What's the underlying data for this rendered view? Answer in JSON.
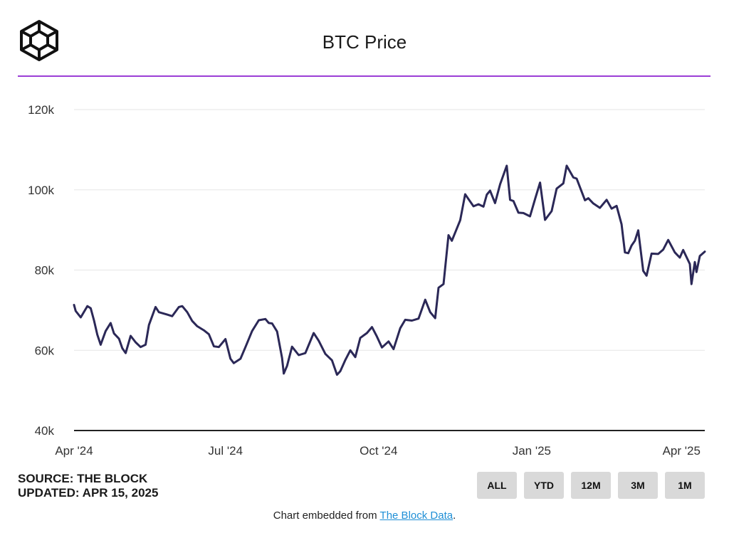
{
  "header": {
    "title": "BTC Price",
    "accent_color": "#9b3fd6",
    "logo_icon": "the-block-cube-logo"
  },
  "chart_data": {
    "type": "line",
    "title": "BTC Price",
    "xlabel": "",
    "ylabel": "",
    "x_range": [
      "2024-04-01",
      "2025-04-15"
    ],
    "ylim": [
      40000,
      120000
    ],
    "y_ticks": [
      40000,
      60000,
      80000,
      100000,
      120000
    ],
    "y_tick_labels": [
      "40k",
      "60k",
      "80k",
      "100k",
      "120k"
    ],
    "x_ticks": [
      "2024-04-01",
      "2024-07-01",
      "2024-10-01",
      "2025-01-01",
      "2025-04-01"
    ],
    "x_tick_labels": [
      "Apr '24",
      "Jul '24",
      "Oct '24",
      "Jan '25",
      "Apr '25"
    ],
    "grid": true,
    "line_color": "#2b2857",
    "series": [
      {
        "x": [
          "2024-04-01",
          "2024-04-02",
          "2024-04-05",
          "2024-04-09",
          "2024-04-11",
          "2024-04-13",
          "2024-04-15",
          "2024-04-17",
          "2024-04-20",
          "2024-04-23",
          "2024-04-25",
          "2024-04-28",
          "2024-04-30",
          "2024-05-02",
          "2024-05-05",
          "2024-05-08",
          "2024-05-11",
          "2024-05-14",
          "2024-05-16",
          "2024-05-20",
          "2024-05-22",
          "2024-05-27",
          "2024-05-30",
          "2024-06-03",
          "2024-06-05",
          "2024-06-08",
          "2024-06-11",
          "2024-06-14",
          "2024-06-18",
          "2024-06-21",
          "2024-06-24",
          "2024-06-27",
          "2024-07-01",
          "2024-07-04",
          "2024-07-06",
          "2024-07-10",
          "2024-07-13",
          "2024-07-17",
          "2024-07-21",
          "2024-07-25",
          "2024-07-27",
          "2024-07-29",
          "2024-08-01",
          "2024-08-04",
          "2024-08-05",
          "2024-08-07",
          "2024-08-10",
          "2024-08-14",
          "2024-08-18",
          "2024-08-23",
          "2024-08-26",
          "2024-08-30",
          "2024-09-03",
          "2024-09-06",
          "2024-09-08",
          "2024-09-11",
          "2024-09-14",
          "2024-09-17",
          "2024-09-20",
          "2024-09-24",
          "2024-09-27",
          "2024-09-30",
          "2024-10-03",
          "2024-10-07",
          "2024-10-10",
          "2024-10-14",
          "2024-10-17",
          "2024-10-21",
          "2024-10-25",
          "2024-10-29",
          "2024-11-01",
          "2024-11-04",
          "2024-11-06",
          "2024-11-09",
          "2024-11-12",
          "2024-11-14",
          "2024-11-19",
          "2024-11-22",
          "2024-11-24",
          "2024-11-27",
          "2024-11-30",
          "2024-12-03",
          "2024-12-05",
          "2024-12-07",
          "2024-12-10",
          "2024-12-13",
          "2024-12-17",
          "2024-12-19",
          "2024-12-21",
          "2024-12-24",
          "2024-12-27",
          "2024-12-31",
          "2025-01-03",
          "2025-01-06",
          "2025-01-09",
          "2025-01-13",
          "2025-01-16",
          "2025-01-20",
          "2025-01-22",
          "2025-01-26",
          "2025-01-28",
          "2025-02-02",
          "2025-02-04",
          "2025-02-07",
          "2025-02-11",
          "2025-02-15",
          "2025-02-18",
          "2025-02-21",
          "2025-02-24",
          "2025-02-26",
          "2025-02-28",
          "2025-03-02",
          "2025-03-04",
          "2025-03-06",
          "2025-03-09",
          "2025-03-11",
          "2025-03-14",
          "2025-03-18",
          "2025-03-21",
          "2025-03-24",
          "2025-03-28",
          "2025-03-31",
          "2025-04-02",
          "2025-04-06",
          "2025-04-07",
          "2025-04-09",
          "2025-04-10",
          "2025-04-12",
          "2025-04-15"
        ],
        "values": [
          71300,
          69800,
          68200,
          71000,
          70500,
          67400,
          63900,
          61400,
          64800,
          66800,
          64200,
          62900,
          60500,
          59300,
          63600,
          62000,
          60800,
          61400,
          66300,
          70800,
          69500,
          68900,
          68500,
          70800,
          71000,
          69500,
          67300,
          66000,
          65000,
          64000,
          61000,
          60800,
          62800,
          57900,
          56800,
          57900,
          60800,
          64800,
          67500,
          67800,
          66800,
          66700,
          64700,
          58100,
          54200,
          56100,
          60900,
          58800,
          59300,
          64300,
          62400,
          59100,
          57500,
          53900,
          54800,
          57600,
          60000,
          58300,
          63100,
          64300,
          65800,
          63400,
          60700,
          62200,
          60300,
          65500,
          67600,
          67400,
          67900,
          72600,
          69500,
          68000,
          75600,
          76500,
          88700,
          87300,
          92400,
          98900,
          97700,
          95900,
          96400,
          95800,
          98800,
          99800,
          96700,
          101400,
          106000,
          97500,
          97200,
          94300,
          94200,
          93400,
          97700,
          101800,
          92500,
          94700,
          100300,
          101600,
          106000,
          103100,
          102800,
          97400,
          97900,
          96600,
          95500,
          97500,
          95300,
          96000,
          91400,
          84400,
          84200,
          86100,
          87300,
          89900,
          79800,
          78600,
          84100,
          84000,
          85100,
          87500,
          84400,
          83100,
          85000,
          81500,
          76500,
          82000,
          79500,
          83500,
          84600
        ]
      }
    ]
  },
  "footer": {
    "source": "SOURCE: THE BLOCK",
    "updated": "UPDATED: APR 15, 2025"
  },
  "range_buttons": [
    "ALL",
    "YTD",
    "12M",
    "3M",
    "1M"
  ],
  "embed": {
    "prefix": "Chart embedded from ",
    "link_text": "The Block Data",
    "suffix": ".",
    "link_color": "#1f8fd6"
  }
}
